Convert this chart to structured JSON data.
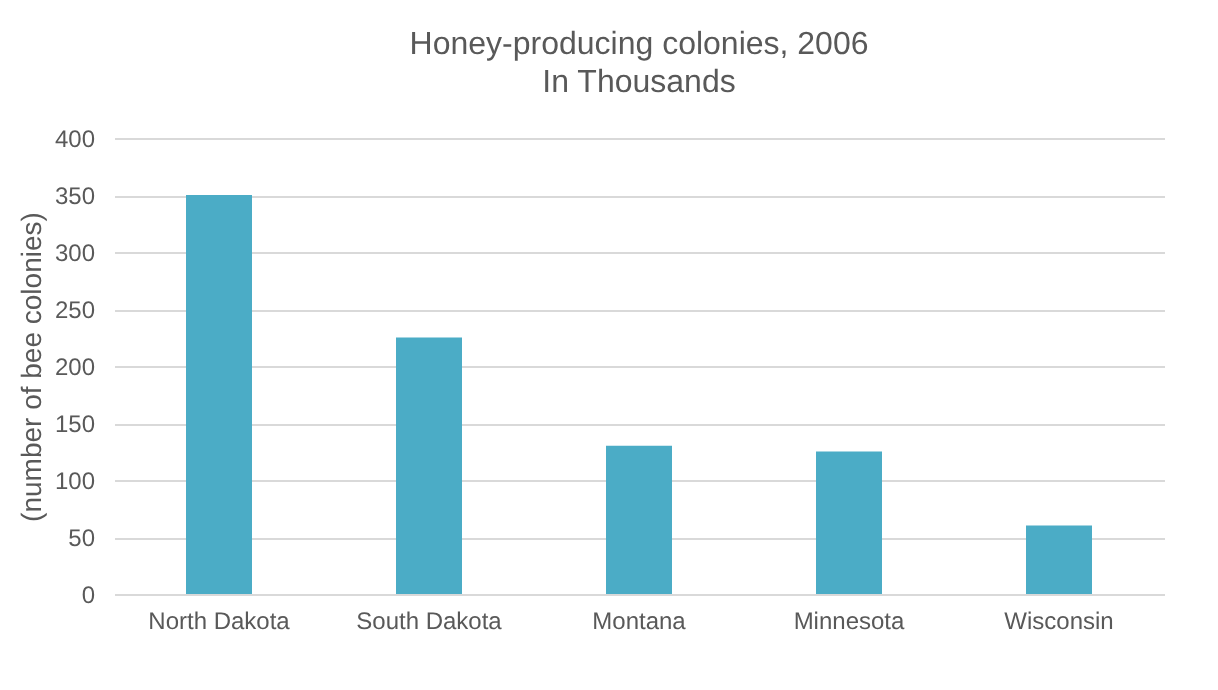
{
  "chart_data": {
    "type": "bar",
    "title": "Honey-producing colonies, 2006",
    "subtitle": "In Thousands",
    "ylabel": "(number of bee colonies)",
    "categories": [
      "North Dakota",
      "South Dakota",
      "Montana",
      "Minnesota",
      "Wisconsin"
    ],
    "values": [
      350,
      225,
      130,
      125,
      60
    ],
    "color": "#4bacc6",
    "ylim": [
      0,
      400
    ],
    "yticks": [
      0,
      50,
      100,
      150,
      200,
      250,
      300,
      350,
      400
    ],
    "grid": "y"
  }
}
